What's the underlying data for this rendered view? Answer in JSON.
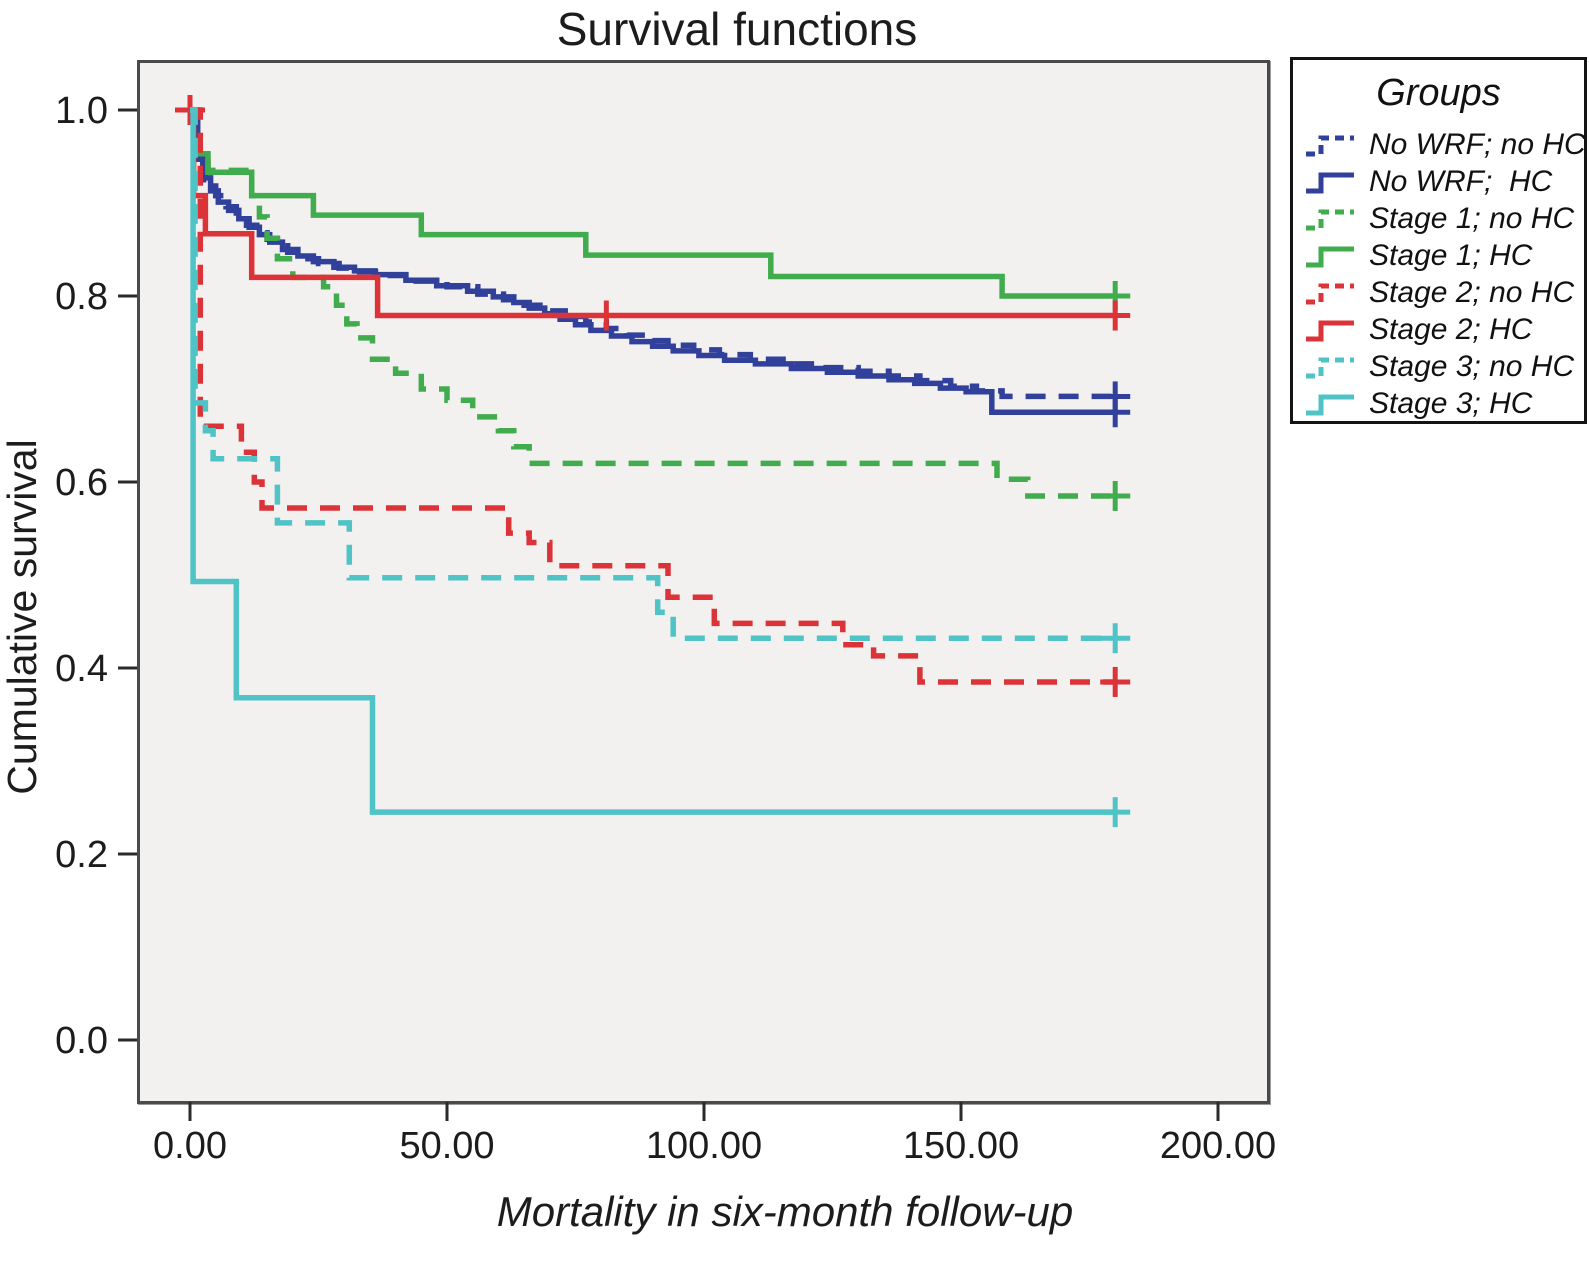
{
  "chart": {
    "title": "Survival functions",
    "x_axis": {
      "label": "Mortality in six-month follow-up",
      "tick_labels": [
        "0.00",
        "50.00",
        "100.00",
        "150.00",
        "200.00"
      ],
      "tick_values": [
        0,
        50,
        100,
        150,
        200
      ]
    },
    "y_axis": {
      "label": "Cumulative survival",
      "tick_labels": [
        "1.0",
        "0.8",
        "0.6",
        "0.4",
        "0.2",
        "0.0"
      ],
      "tick_values": [
        1.0,
        0.8,
        0.6,
        0.4,
        0.2,
        0.0
      ]
    },
    "colors": {
      "blue": "#31409b",
      "green": "#41ac4d",
      "red": "#dc3338",
      "teal": "#4fc3c5",
      "plot_background": "#f2f1ef",
      "frame": "#4a4a4c"
    }
  },
  "legend": {
    "title": "Groups",
    "items": [
      {
        "label": "No WRF; no HC",
        "color": "#31409b",
        "style": "dashed"
      },
      {
        "label": "No WRF;  HC",
        "color": "#31409b",
        "style": "solid"
      },
      {
        "label": "Stage 1; no HC",
        "color": "#41ac4d",
        "style": "dashed"
      },
      {
        "label": "Stage 1; HC",
        "color": "#41ac4d",
        "style": "solid"
      },
      {
        "label": "Stage 2; no HC",
        "color": "#dc3338",
        "style": "dashed"
      },
      {
        "label": "Stage 2; HC",
        "color": "#dc3338",
        "style": "solid"
      },
      {
        "label": "Stage 3; no HC",
        "color": "#4fc3c5",
        "style": "dashed"
      },
      {
        "label": "Stage 3; HC",
        "color": "#4fc3c5",
        "style": "solid"
      }
    ]
  },
  "chart_data": {
    "type": "line",
    "subtype": "kaplan-meier-step",
    "title": "Survival functions",
    "xlabel": "Mortality in six-month follow-up",
    "ylabel": "Cumulative survival",
    "xlim": [
      0,
      200
    ],
    "ylim": [
      0.0,
      1.0
    ],
    "grid": false,
    "legend_position": "outside-upper-right",
    "step": "post",
    "series": [
      {
        "name": "No WRF; no HC",
        "color": "#31409b",
        "dash": true,
        "points": [
          [
            0,
            1.0
          ],
          [
            1,
            0.945
          ],
          [
            3,
            0.925
          ],
          [
            5,
            0.908
          ],
          [
            7,
            0.896
          ],
          [
            9,
            0.886
          ],
          [
            11,
            0.876
          ],
          [
            13,
            0.868
          ],
          [
            15,
            0.861
          ],
          [
            17,
            0.854
          ],
          [
            19,
            0.847
          ],
          [
            22,
            0.84
          ],
          [
            25,
            0.835
          ],
          [
            29,
            0.83
          ],
          [
            33,
            0.826
          ],
          [
            37,
            0.822
          ],
          [
            44,
            0.816
          ],
          [
            50,
            0.81
          ],
          [
            56,
            0.802
          ],
          [
            61,
            0.796
          ],
          [
            65,
            0.79
          ],
          [
            69,
            0.784
          ],
          [
            73,
            0.778
          ],
          [
            77,
            0.772
          ],
          [
            81,
            0.765
          ],
          [
            85,
            0.758
          ],
          [
            89,
            0.752
          ],
          [
            93,
            0.747
          ],
          [
            98,
            0.742
          ],
          [
            103,
            0.737
          ],
          [
            109,
            0.732
          ],
          [
            116,
            0.727
          ],
          [
            123,
            0.723
          ],
          [
            130,
            0.719
          ],
          [
            136,
            0.714
          ],
          [
            142,
            0.709
          ],
          [
            148,
            0.703
          ],
          [
            153,
            0.698
          ],
          [
            158,
            0.692
          ],
          [
            180,
            0.692
          ]
        ],
        "censor_marks": [
          [
            180,
            0.692
          ]
        ]
      },
      {
        "name": "No WRF;  HC",
        "color": "#31409b",
        "dash": false,
        "points": [
          [
            0,
            1.0
          ],
          [
            1.5,
            0.947
          ],
          [
            2.5,
            0.927
          ],
          [
            4,
            0.913
          ],
          [
            5.5,
            0.901
          ],
          [
            7.5,
            0.892
          ],
          [
            9.5,
            0.883
          ],
          [
            11.5,
            0.874
          ],
          [
            13.5,
            0.866
          ],
          [
            15.5,
            0.858
          ],
          [
            18,
            0.85
          ],
          [
            21,
            0.843
          ],
          [
            24,
            0.837
          ],
          [
            28,
            0.831
          ],
          [
            32,
            0.827
          ],
          [
            36,
            0.823
          ],
          [
            42,
            0.817
          ],
          [
            48,
            0.811
          ],
          [
            54,
            0.805
          ],
          [
            59,
            0.799
          ],
          [
            63,
            0.793
          ],
          [
            66,
            0.787
          ],
          [
            69,
            0.781
          ],
          [
            72,
            0.775
          ],
          [
            75,
            0.769
          ],
          [
            78,
            0.763
          ],
          [
            82,
            0.757
          ],
          [
            86,
            0.751
          ],
          [
            90,
            0.746
          ],
          [
            94,
            0.741
          ],
          [
            99,
            0.736
          ],
          [
            104,
            0.731
          ],
          [
            110,
            0.727
          ],
          [
            117,
            0.722
          ],
          [
            124,
            0.718
          ],
          [
            130,
            0.714
          ],
          [
            136,
            0.71
          ],
          [
            141,
            0.706
          ],
          [
            146,
            0.701
          ],
          [
            151,
            0.697
          ],
          [
            156,
            0.675
          ],
          [
            180,
            0.675
          ]
        ],
        "censor_marks": [
          [
            180,
            0.675
          ]
        ]
      },
      {
        "name": "Stage 1; no HC",
        "color": "#41ac4d",
        "dash": true,
        "points": [
          [
            0,
            1.0
          ],
          [
            1,
            0.955
          ],
          [
            3.5,
            0.935
          ],
          [
            12,
            0.908
          ],
          [
            13.5,
            0.885
          ],
          [
            15,
            0.862
          ],
          [
            17,
            0.84
          ],
          [
            20,
            0.82
          ],
          [
            26,
            0.81
          ],
          [
            28.5,
            0.79
          ],
          [
            30.5,
            0.77
          ],
          [
            32.5,
            0.755
          ],
          [
            35.5,
            0.732
          ],
          [
            40,
            0.717
          ],
          [
            45,
            0.7
          ],
          [
            50,
            0.688
          ],
          [
            55,
            0.67
          ],
          [
            60,
            0.655
          ],
          [
            63,
            0.638
          ],
          [
            66,
            0.62
          ],
          [
            157,
            0.603
          ],
          [
            163,
            0.585
          ],
          [
            180,
            0.585
          ]
        ],
        "censor_marks": [
          [
            180,
            0.585
          ]
        ]
      },
      {
        "name": "Stage 1; HC",
        "color": "#41ac4d",
        "dash": false,
        "points": [
          [
            0,
            1.0
          ],
          [
            0.7,
            0.953
          ],
          [
            3.5,
            0.933
          ],
          [
            12,
            0.908
          ],
          [
            24,
            0.887
          ],
          [
            45,
            0.866
          ],
          [
            77,
            0.844
          ],
          [
            113,
            0.821
          ],
          [
            158,
            0.8
          ],
          [
            180,
            0.8
          ]
        ],
        "censor_marks": [
          [
            180,
            0.8
          ]
        ]
      },
      {
        "name": "Stage 2; no HC",
        "color": "#dc3338",
        "dash": true,
        "points": [
          [
            0,
            1.0
          ],
          [
            2,
            0.66
          ],
          [
            10,
            0.632
          ],
          [
            12.5,
            0.6
          ],
          [
            14,
            0.572
          ],
          [
            62,
            0.545
          ],
          [
            66,
            0.535
          ],
          [
            70,
            0.51
          ],
          [
            93,
            0.476
          ],
          [
            102,
            0.448
          ],
          [
            127,
            0.425
          ],
          [
            133,
            0.413
          ],
          [
            142,
            0.385
          ],
          [
            180,
            0.385
          ]
        ],
        "censor_marks": [
          [
            180,
            0.385
          ]
        ]
      },
      {
        "name": "Stage 2; HC",
        "color": "#dc3338",
        "dash": false,
        "points": [
          [
            0,
            1.0
          ],
          [
            0.7,
            0.908
          ],
          [
            3,
            0.867
          ],
          [
            12,
            0.82
          ],
          [
            36.5,
            0.779
          ],
          [
            180,
            0.779
          ]
        ],
        "censor_marks": [
          [
            0,
            1.0
          ],
          [
            81,
            0.779
          ],
          [
            180,
            0.779
          ]
        ]
      },
      {
        "name": "Stage 3; no HC",
        "color": "#4fc3c5",
        "dash": true,
        "points": [
          [
            0,
            1.0
          ],
          [
            1,
            0.685
          ],
          [
            3,
            0.655
          ],
          [
            4.5,
            0.625
          ],
          [
            17,
            0.556
          ],
          [
            31,
            0.497
          ],
          [
            91,
            0.46
          ],
          [
            94,
            0.432
          ],
          [
            180,
            0.432
          ]
        ],
        "censor_marks": [
          [
            180,
            0.432
          ]
        ]
      },
      {
        "name": "Stage 3; HC",
        "color": "#4fc3c5",
        "dash": false,
        "points": [
          [
            0,
            1.0
          ],
          [
            0.6,
            0.493
          ],
          [
            9,
            0.368
          ],
          [
            35.5,
            0.245
          ],
          [
            180,
            0.245
          ]
        ],
        "censor_marks": [
          [
            180,
            0.245
          ]
        ]
      }
    ]
  }
}
